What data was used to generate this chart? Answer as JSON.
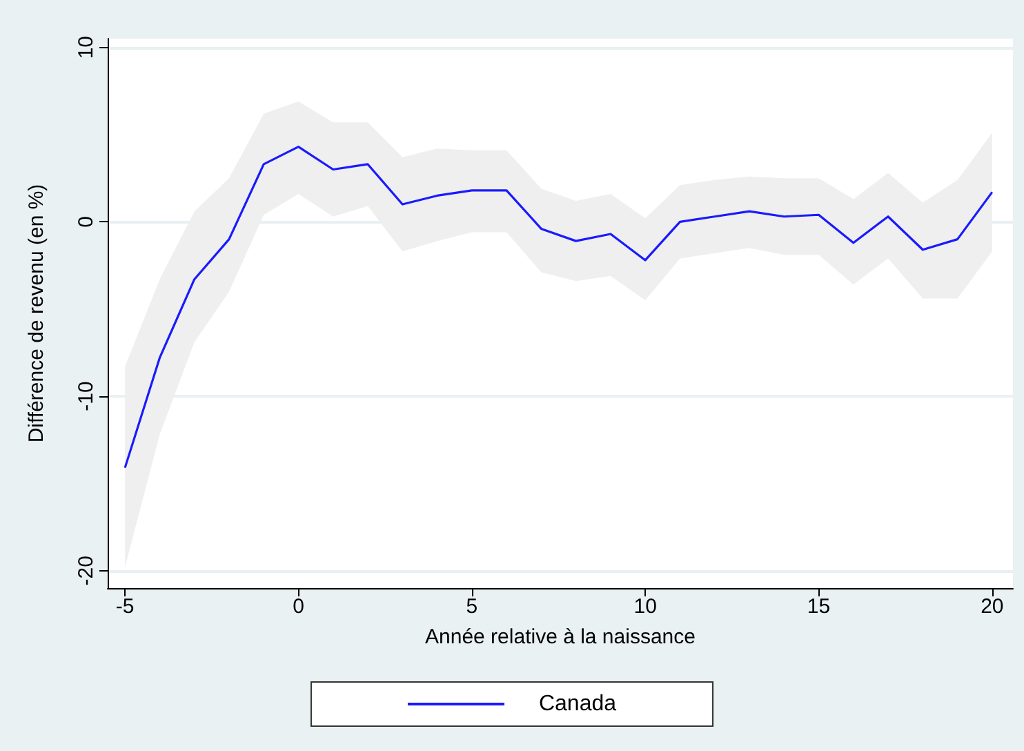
{
  "chart_data": {
    "type": "line",
    "xlabel": "Année relative à la naissance",
    "ylabel": "Différence de revenu (en %)",
    "x": [
      -5,
      -4,
      -3,
      -2,
      -1,
      0,
      1,
      2,
      3,
      4,
      5,
      6,
      7,
      8,
      9,
      10,
      11,
      12,
      13,
      14,
      15,
      16,
      17,
      18,
      19,
      20
    ],
    "series": [
      {
        "name": "Canada",
        "color": "#1a1aff",
        "values": [
          -14.1,
          -7.8,
          -3.3,
          -1.0,
          3.3,
          4.3,
          3.0,
          3.3,
          1.0,
          1.5,
          1.8,
          1.8,
          -0.4,
          -1.1,
          -0.7,
          -2.2,
          0.0,
          0.3,
          0.6,
          0.3,
          0.4,
          -1.2,
          0.3,
          -1.6,
          -1.0,
          1.7
        ],
        "lower": [
          -19.8,
          -12.2,
          -6.9,
          -4.0,
          0.4,
          1.6,
          0.3,
          0.9,
          -1.7,
          -1.1,
          -0.6,
          -0.6,
          -2.9,
          -3.4,
          -3.1,
          -4.5,
          -2.1,
          -1.8,
          -1.5,
          -1.9,
          -1.9,
          -3.6,
          -2.1,
          -4.4,
          -4.4,
          -1.7
        ],
        "upper": [
          -8.3,
          -3.3,
          0.6,
          2.5,
          6.2,
          6.9,
          5.7,
          5.7,
          3.7,
          4.2,
          4.1,
          4.1,
          1.9,
          1.2,
          1.6,
          0.2,
          2.1,
          2.4,
          2.6,
          2.5,
          2.5,
          1.3,
          2.8,
          1.1,
          2.4,
          5.1
        ]
      }
    ],
    "xlim": [
      -5.5,
      20.6
    ],
    "xticks": [
      -5,
      0,
      5,
      10,
      15,
      20
    ],
    "ylim": [
      -21,
      10.5
    ],
    "yticks": [
      -20,
      -10,
      0,
      10
    ],
    "grid": "y",
    "legend": "bottom",
    "marker": "none",
    "line_style": "solid"
  }
}
